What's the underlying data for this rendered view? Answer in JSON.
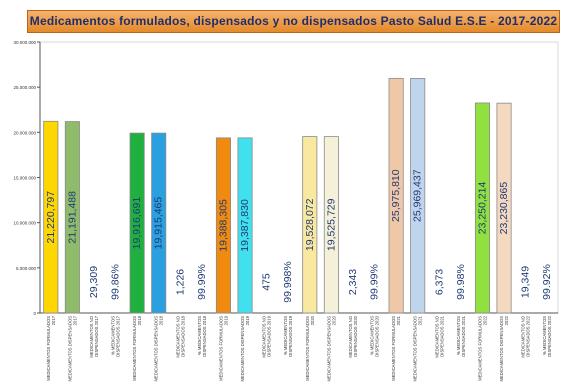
{
  "chart_data": {
    "type": "bar",
    "title": "Medicamentos formulados, dispensados y no dispensados Pasto Salud E.S.E - 2017-2022",
    "xlabel": "",
    "ylabel": "",
    "ylim": [
      0,
      30000000
    ],
    "yticks": [
      0,
      5000000,
      10000000,
      15000000,
      20000000,
      25000000,
      30000000
    ],
    "ytick_labels": [
      "0",
      "5.000.000",
      "10.000.000",
      "15.000.000",
      "20.000.000",
      "25.000.000",
      "30.000.000"
    ],
    "grid": false,
    "legend": "none",
    "categories": [
      "MEDICAMENTOS FORMULADOS 2017",
      "MEDICAMENTOS DISPENSADOS 2017",
      "MEDICAMENTOS NO DISPENSADOS 2017",
      "% MEDICAMENTOS DISPENSADOS 2017",
      "MEDICAMENTOS FORMULADOS 2018",
      "MEDICAMENTOS DISPENSADOS 2018",
      "MEDICAMENTOS NO DISPENSADOS 2018",
      "% MEDICAMENTOS DISPENSADOS 2018",
      "MEDICAMENTOS FORMULADOS 2019",
      "MEDICAMENTOS DISPENSADOS 2019",
      "MEDICAMENTOS NO DISPENSADOS 2019",
      "% MEDICAMENTOS DISPENSADOS 2019",
      "MEDICAMENTOS FORMULADOS 2020",
      "MEDICAMENTOS DISPENSADOS 2020",
      "MEDICAMENTOS NO DISPENSADOS 2020",
      "% MEDICAMENTOS DISPENSADOS 2020",
      "MEDICAMENTOS FORMULADOS 2021",
      "MEDICAMENTOS DISPENSADOS 2021",
      "MEDICAMENTOS NO DISPENSADOS 2021",
      "% MEDICAMENTOS DISPENSADOS 2021",
      "MEDICAMENTOS FORMULADOS 2022",
      "MEDICAMENTOS DISPENSADOS 2022",
      "MEDICAMENTOS NO DISPENSADOS 2022",
      "% MEDICAMENTOS DISPENSADOS 2022"
    ],
    "values": [
      21220797,
      21191488,
      29309,
      99.86,
      19916691,
      19915465,
      1226,
      99.99,
      19388305,
      19387830,
      475,
      99.998,
      19528072,
      19525729,
      2343,
      99.99,
      25975810,
      25969437,
      6373,
      99.98,
      23250214,
      23230865,
      19349,
      99.92
    ],
    "data_labels": [
      "21,220,797",
      "21,191,488",
      "29,309",
      "99.86%",
      "19,916,691",
      "19,915,465",
      "1,226",
      "99.99%",
      "19,388,305",
      "19,387,830",
      "475",
      "99.998%",
      "19,528,072",
      "19,525,729",
      "2,343",
      "99.99%",
      "25,975,810",
      "25,969,437",
      "6,373",
      "99.98%",
      "23,250,214",
      "23,230,865",
      "19,349",
      "99.92%"
    ],
    "colors": [
      "#ffd700",
      "#8fbc6a",
      "#ffffff",
      "#ffffff",
      "#20b040",
      "#2aa0e0",
      "#ffffff",
      "#ffffff",
      "#f08a10",
      "#40e0ee",
      "#ffffff",
      "#ffffff",
      "#f8e8a0",
      "#f5f0d8",
      "#ffffff",
      "#ffffff",
      "#f0c8a8",
      "#c0d4ee",
      "#ffffff",
      "#ffffff",
      "#90e040",
      "#f5d8c0",
      "#ffffff",
      "#ffffff"
    ]
  }
}
